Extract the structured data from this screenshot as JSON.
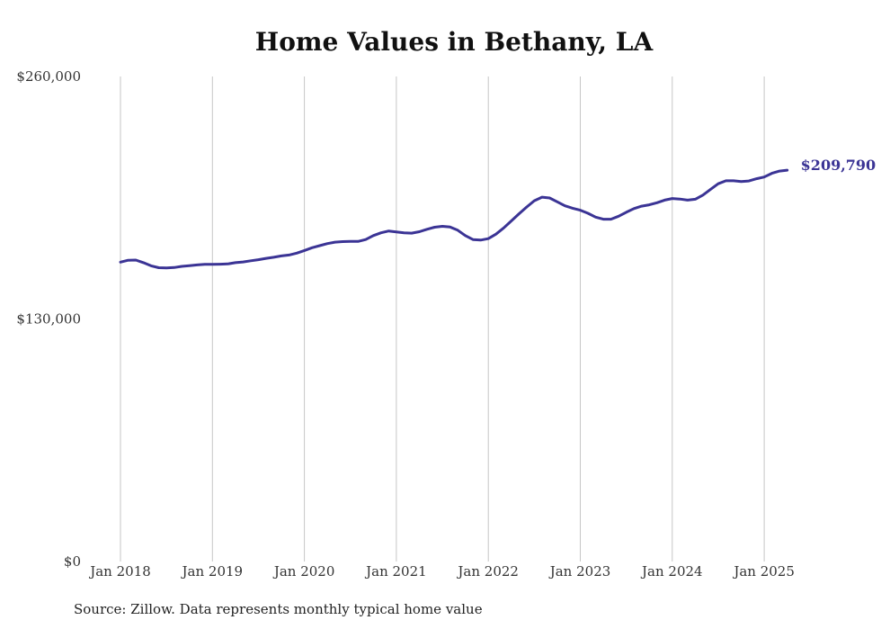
{
  "chart_data": {
    "type": "line",
    "title": "Home Values in Bethany, LA",
    "xlabel": "",
    "ylabel": "",
    "ylim": [
      0,
      260000
    ],
    "y_ticks": [
      "$0",
      "$130,000",
      "$260,000"
    ],
    "y_tick_values": [
      0,
      130000,
      260000
    ],
    "x_ticks": [
      "Jan 2018",
      "Jan 2019",
      "Jan 2020",
      "Jan 2021",
      "Jan 2022",
      "Jan 2023",
      "Jan 2024",
      "Jan 2025"
    ],
    "x_tick_values": [
      "2018-01",
      "2019-01",
      "2020-01",
      "2021-01",
      "2022-01",
      "2023-01",
      "2024-01",
      "2025-01"
    ],
    "x_range": [
      "2018-01",
      "2025-03"
    ],
    "grid": "vertical",
    "line_color": "#3b3495",
    "end_label": "$209,790",
    "series": [
      {
        "values": [
          {
            "x": "2018-01",
            "y": 160500
          },
          {
            "x": "2018-02",
            "y": 161500
          },
          {
            "x": "2018-03",
            "y": 161600
          },
          {
            "x": "2018-04",
            "y": 160200
          },
          {
            "x": "2018-05",
            "y": 158500
          },
          {
            "x": "2018-06",
            "y": 157500
          },
          {
            "x": "2018-07",
            "y": 157400
          },
          {
            "x": "2018-08",
            "y": 157600
          },
          {
            "x": "2018-09",
            "y": 158200
          },
          {
            "x": "2018-10",
            "y": 158600
          },
          {
            "x": "2018-11",
            "y": 159000
          },
          {
            "x": "2018-12",
            "y": 159300
          },
          {
            "x": "2019-01",
            "y": 159300
          },
          {
            "x": "2019-02",
            "y": 159400
          },
          {
            "x": "2019-03",
            "y": 159500
          },
          {
            "x": "2019-04",
            "y": 160200
          },
          {
            "x": "2019-05",
            "y": 160600
          },
          {
            "x": "2019-06",
            "y": 161200
          },
          {
            "x": "2019-07",
            "y": 161800
          },
          {
            "x": "2019-08",
            "y": 162500
          },
          {
            "x": "2019-09",
            "y": 163100
          },
          {
            "x": "2019-10",
            "y": 163800
          },
          {
            "x": "2019-11",
            "y": 164300
          },
          {
            "x": "2019-12",
            "y": 165300
          },
          {
            "x": "2020-01",
            "y": 166700
          },
          {
            "x": "2020-02",
            "y": 168200
          },
          {
            "x": "2020-03",
            "y": 169300
          },
          {
            "x": "2020-04",
            "y": 170400
          },
          {
            "x": "2020-05",
            "y": 171200
          },
          {
            "x": "2020-06",
            "y": 171500
          },
          {
            "x": "2020-07",
            "y": 171600
          },
          {
            "x": "2020-08",
            "y": 171600
          },
          {
            "x": "2020-09",
            "y": 172600
          },
          {
            "x": "2020-10",
            "y": 174700
          },
          {
            "x": "2020-11",
            "y": 176200
          },
          {
            "x": "2020-12",
            "y": 177200
          },
          {
            "x": "2021-01",
            "y": 176700
          },
          {
            "x": "2021-02",
            "y": 176200
          },
          {
            "x": "2021-03",
            "y": 176000
          },
          {
            "x": "2021-04",
            "y": 176800
          },
          {
            "x": "2021-05",
            "y": 178100
          },
          {
            "x": "2021-06",
            "y": 179200
          },
          {
            "x": "2021-07",
            "y": 179700
          },
          {
            "x": "2021-08",
            "y": 179300
          },
          {
            "x": "2021-09",
            "y": 177600
          },
          {
            "x": "2021-10",
            "y": 174700
          },
          {
            "x": "2021-11",
            "y": 172600
          },
          {
            "x": "2021-12",
            "y": 172300
          },
          {
            "x": "2022-01",
            "y": 173100
          },
          {
            "x": "2022-02",
            "y": 175500
          },
          {
            "x": "2022-03",
            "y": 178800
          },
          {
            "x": "2022-04",
            "y": 182600
          },
          {
            "x": "2022-05",
            "y": 186400
          },
          {
            "x": "2022-06",
            "y": 190000
          },
          {
            "x": "2022-07",
            "y": 193400
          },
          {
            "x": "2022-08",
            "y": 195300
          },
          {
            "x": "2022-09",
            "y": 194900
          },
          {
            "x": "2022-10",
            "y": 192800
          },
          {
            "x": "2022-11",
            "y": 190700
          },
          {
            "x": "2022-12",
            "y": 189400
          },
          {
            "x": "2023-01",
            "y": 188300
          },
          {
            "x": "2023-02",
            "y": 186700
          },
          {
            "x": "2023-03",
            "y": 184600
          },
          {
            "x": "2023-04",
            "y": 183500
          },
          {
            "x": "2023-05",
            "y": 183500
          },
          {
            "x": "2023-06",
            "y": 185100
          },
          {
            "x": "2023-07",
            "y": 187200
          },
          {
            "x": "2023-08",
            "y": 189200
          },
          {
            "x": "2023-09",
            "y": 190500
          },
          {
            "x": "2023-10",
            "y": 191200
          },
          {
            "x": "2023-11",
            "y": 192300
          },
          {
            "x": "2023-12",
            "y": 193700
          },
          {
            "x": "2024-01",
            "y": 194600
          },
          {
            "x": "2024-02",
            "y": 194300
          },
          {
            "x": "2024-03",
            "y": 193700
          },
          {
            "x": "2024-04",
            "y": 194200
          },
          {
            "x": "2024-05",
            "y": 196400
          },
          {
            "x": "2024-06",
            "y": 199500
          },
          {
            "x": "2024-07",
            "y": 202500
          },
          {
            "x": "2024-08",
            "y": 204100
          },
          {
            "x": "2024-09",
            "y": 204100
          },
          {
            "x": "2024-10",
            "y": 203700
          },
          {
            "x": "2024-11",
            "y": 204000
          },
          {
            "x": "2024-12",
            "y": 205200
          },
          {
            "x": "2025-01",
            "y": 206100
          },
          {
            "x": "2025-02",
            "y": 208100
          },
          {
            "x": "2025-03",
            "y": 209300
          },
          {
            "x": "2025-04",
            "y": 209790
          }
        ]
      }
    ]
  },
  "source_note": "Source: Zillow. Data represents monthly typical home value"
}
